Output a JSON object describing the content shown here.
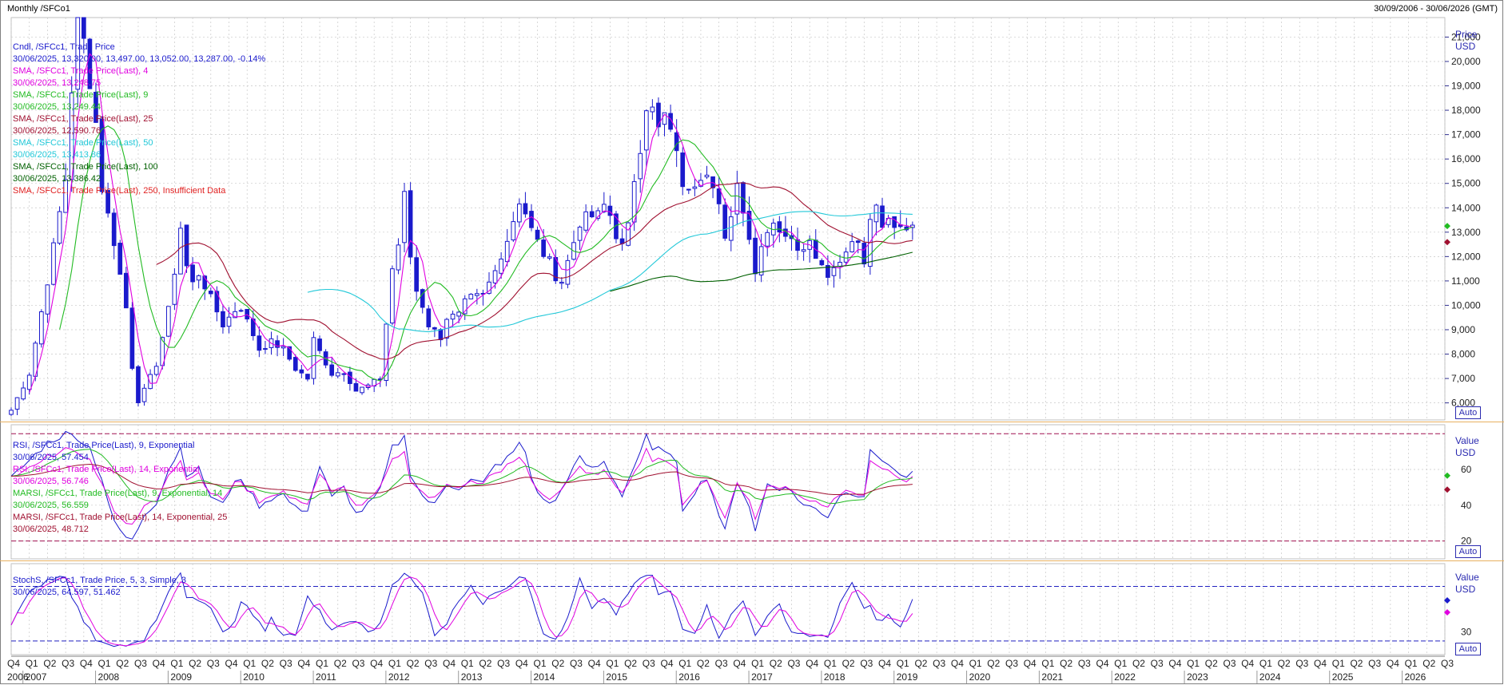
{
  "header": {
    "title": "Monthly /SFCo1",
    "date_range": "30/09/2006 - 30/06/2026 (GMT)"
  },
  "price_panel": {
    "axis_title": [
      "Price",
      "USD"
    ],
    "auto_label": "Auto",
    "legend": [
      {
        "text": "Cndl, /SFCc1, Trade Price",
        "color": "#1a1acc"
      },
      {
        "text": "30/06/2025, 13,320.00, 13,497.00, 13,052.00, 13,287.00, -0.14%",
        "color": "#1a1acc",
        "suffix": "",
        "suffix_color": "#e00000"
      },
      {
        "text": "SMA, /SFCc1, Trade Price(Last), 4",
        "color": "#e000e0"
      },
      {
        "text": "30/06/2025, 13,248.75",
        "color": "#e000e0"
      },
      {
        "text": "SMA, /SFCc1, Trade Price(Last), 9",
        "color": "#22bb22"
      },
      {
        "text": "30/06/2025, 13,249.44",
        "color": "#22bb22"
      },
      {
        "text": "SMA, /SFCc1, Trade Price(Last), 25",
        "color": "#a01030"
      },
      {
        "text": "30/06/2025, 12,590.76",
        "color": "#a01030"
      },
      {
        "text": "SMA, /SFCc1, Trade Price(Last), 50",
        "color": "#22c8d8"
      },
      {
        "text": "30/06/2025, 13,413.86",
        "color": "#22c8d8"
      },
      {
        "text": "SMA, /SFCc1, Trade Price(Last), 100",
        "color": "#006000"
      },
      {
        "text": "30/06/2025, 13,386.42",
        "color": "#006000"
      },
      {
        "text": "SMA, /SFCc1, Trade Price(Last), 250, Insufficient Data",
        "color": "#e02020"
      }
    ]
  },
  "rsi_panel": {
    "axis_title": [
      "Value",
      "USD"
    ],
    "auto_label": "Auto",
    "legend": [
      {
        "text": "RSI, /SFCc1, Trade Price(Last), 9, Exponential",
        "color": "#1a1acc"
      },
      {
        "text": "30/06/2025, 57.454",
        "color": "#1a1acc"
      },
      {
        "text": "RSI, /SFCc1, Trade Price(Last), 14, Exponential",
        "color": "#e000e0"
      },
      {
        "text": "30/06/2025, 56.746",
        "color": "#e000e0"
      },
      {
        "text": "MARSI, /SFCc1, Trade Price(Last), 9, Exponential, 14",
        "color": "#22bb22"
      },
      {
        "text": "30/06/2025, 56.559",
        "color": "#22bb22"
      },
      {
        "text": "MARSI, /SFCc1, Trade Price(Last), 14, Exponential, 25",
        "color": "#a01030"
      },
      {
        "text": "30/06/2025, 48.712",
        "color": "#a01030"
      }
    ]
  },
  "stoch_panel": {
    "axis_title": [
      "Value",
      "USD"
    ],
    "auto_label": "Auto",
    "legend": [
      {
        "text": "StochS, /SFCc1, Trade Price, 5, 3, Simple, 3",
        "color": "#1a1acc"
      },
      {
        "text": "30/06/2025, 64.597, 51.462",
        "color": "#1a1acc"
      }
    ]
  },
  "chart_data": {
    "type": "candlestick",
    "frequency": "monthly",
    "price_axis": {
      "ticks": [
        6000,
        7000,
        8000,
        9000,
        10000,
        11000,
        12000,
        13000,
        14000,
        15000,
        16000,
        17000,
        18000,
        19000,
        20000,
        21000
      ],
      "tick_labels": [
        "6,000",
        "7,000",
        "8,000",
        "9,000",
        "10,000",
        "11,000",
        "12,000",
        "13,000",
        "14,000",
        "15,000",
        "16,000",
        "17,000",
        "18,000",
        "19,000",
        "20,000",
        "21,000"
      ],
      "range": [
        5300,
        21800
      ]
    },
    "rsi_axis": {
      "ticks": [
        20,
        40,
        60
      ],
      "range": [
        10,
        85
      ],
      "bands": [
        20,
        80
      ]
    },
    "stoch_axis": {
      "ticks": [
        30
      ],
      "range": [
        5,
        105
      ],
      "bands": [
        20,
        80
      ]
    },
    "x_axis": {
      "range_quarters": [
        0,
        79
      ],
      "quarter_labels": [
        "Q4",
        "Q1",
        "Q2",
        "Q3"
      ],
      "years": [
        "2006",
        "2007",
        "2008",
        "2009",
        "2010",
        "2011",
        "2012",
        "2013",
        "2014",
        "2015",
        "2016",
        "2017",
        "2018",
        "2019",
        "2020",
        "2021",
        "2022",
        "2023",
        "2024",
        "2025",
        "2026"
      ],
      "last_quarter_label": "Q2"
    },
    "anchors": {
      "close": [
        [
          0,
          5700
        ],
        [
          3,
          7200
        ],
        [
          6,
          11000
        ],
        [
          8,
          13800
        ],
        [
          9,
          15200
        ],
        [
          11,
          22500
        ],
        [
          14,
          17500
        ],
        [
          15,
          14800
        ],
        [
          17,
          12600
        ],
        [
          19,
          9900
        ],
        [
          20,
          7500
        ],
        [
          21,
          6100
        ],
        [
          22,
          6500
        ],
        [
          24,
          7600
        ],
        [
          26,
          9800
        ],
        [
          27,
          11400
        ],
        [
          28,
          13200
        ],
        [
          29,
          11600
        ],
        [
          30,
          10900
        ],
        [
          31,
          11300
        ],
        [
          33,
          10300
        ],
        [
          35,
          9200
        ],
        [
          37,
          9800
        ],
        [
          38,
          9900
        ],
        [
          40,
          8800
        ],
        [
          41,
          8200
        ],
        [
          43,
          8500
        ],
        [
          45,
          8200
        ],
        [
          47,
          7400
        ],
        [
          49,
          7000
        ],
        [
          50,
          8600
        ],
        [
          51,
          8100
        ],
        [
          53,
          7200
        ],
        [
          55,
          7300
        ],
        [
          57,
          6500
        ],
        [
          59,
          6700
        ],
        [
          61,
          7000
        ],
        [
          63,
          11500
        ],
        [
          64,
          12500
        ],
        [
          65,
          14500
        ],
        [
          66,
          12000
        ],
        [
          67,
          10600
        ],
        [
          68,
          10000
        ],
        [
          69,
          9200
        ],
        [
          71,
          8700
        ],
        [
          72,
          9500
        ],
        [
          74,
          9600
        ],
        [
          75,
          10100
        ],
        [
          76,
          10300
        ],
        [
          78,
          10400
        ],
        [
          80,
          11400
        ],
        [
          81,
          12100
        ],
        [
          82,
          12700
        ],
        [
          84,
          14300
        ],
        [
          85,
          13800
        ],
        [
          86,
          13100
        ],
        [
          88,
          12100
        ],
        [
          89,
          11800
        ],
        [
          90,
          11200
        ],
        [
          91,
          11000
        ],
        [
          92,
          11800
        ],
        [
          94,
          13400
        ],
        [
          95,
          13600
        ],
        [
          97,
          13700
        ],
        [
          98,
          14100
        ],
        [
          99,
          13700
        ],
        [
          100,
          12900
        ],
        [
          101,
          12400
        ],
        [
          102,
          13200
        ],
        [
          103,
          15200
        ],
        [
          104,
          16500
        ],
        [
          105,
          18200
        ],
        [
          106,
          18000
        ],
        [
          107,
          17200
        ],
        [
          108,
          17800
        ],
        [
          109,
          17000
        ],
        [
          110,
          16500
        ],
        [
          111,
          14700
        ],
        [
          113,
          15100
        ],
        [
          115,
          15600
        ],
        [
          117,
          14000
        ],
        [
          118,
          12600
        ],
        [
          119,
          13800
        ],
        [
          120,
          15000
        ],
        [
          121,
          14000
        ],
        [
          122,
          12800
        ],
        [
          123,
          11300
        ],
        [
          124,
          12600
        ],
        [
          126,
          13500
        ],
        [
          127,
          13100
        ],
        [
          128,
          12700
        ],
        [
          129,
          12900
        ],
        [
          130,
          12400
        ],
        [
          132,
          12600
        ],
        [
          133,
          12100
        ],
        [
          134,
          11700
        ],
        [
          135,
          11300
        ],
        [
          137,
          11800
        ],
        [
          138,
          12400
        ],
        [
          140,
          12600
        ],
        [
          141,
          11600
        ],
        [
          142,
          13600
        ],
        [
          143,
          13900
        ],
        [
          144,
          13100
        ],
        [
          145,
          13500
        ],
        [
          146,
          13300
        ],
        [
          149,
          13287
        ]
      ],
      "rsi": [
        [
          0,
          55
        ],
        [
          6,
          75
        ],
        [
          9,
          80
        ],
        [
          11,
          78
        ],
        [
          13,
          72
        ],
        [
          15,
          55
        ],
        [
          17,
          30
        ],
        [
          19,
          22
        ],
        [
          20,
          20
        ],
        [
          22,
          35
        ],
        [
          24,
          42
        ],
        [
          26,
          60
        ],
        [
          28,
          72
        ],
        [
          29,
          58
        ],
        [
          31,
          60
        ],
        [
          33,
          45
        ],
        [
          35,
          40
        ],
        [
          37,
          55
        ],
        [
          39,
          50
        ],
        [
          41,
          40
        ],
        [
          43,
          44
        ],
        [
          45,
          46
        ],
        [
          47,
          38
        ],
        [
          49,
          38
        ],
        [
          51,
          62
        ],
        [
          53,
          44
        ],
        [
          55,
          50
        ],
        [
          57,
          35
        ],
        [
          59,
          40
        ],
        [
          61,
          48
        ],
        [
          63,
          72
        ],
        [
          65,
          78
        ],
        [
          66,
          58
        ],
        [
          68,
          45
        ],
        [
          70,
          40
        ],
        [
          72,
          52
        ],
        [
          74,
          50
        ],
        [
          76,
          54
        ],
        [
          78,
          52
        ],
        [
          80,
          62
        ],
        [
          82,
          66
        ],
        [
          84,
          74
        ],
        [
          85,
          70
        ],
        [
          86,
          55
        ],
        [
          88,
          42
        ],
        [
          90,
          42
        ],
        [
          92,
          56
        ],
        [
          94,
          66
        ],
        [
          96,
          60
        ],
        [
          98,
          64
        ],
        [
          100,
          52
        ],
        [
          101,
          46
        ],
        [
          103,
          62
        ],
        [
          105,
          78
        ],
        [
          106,
          70
        ],
        [
          108,
          72
        ],
        [
          110,
          62
        ],
        [
          111,
          38
        ],
        [
          113,
          48
        ],
        [
          115,
          56
        ],
        [
          117,
          35
        ],
        [
          118,
          25
        ],
        [
          120,
          54
        ],
        [
          122,
          40
        ],
        [
          123,
          25
        ],
        [
          125,
          52
        ],
        [
          127,
          50
        ],
        [
          129,
          48
        ],
        [
          131,
          40
        ],
        [
          133,
          38
        ],
        [
          135,
          34
        ],
        [
          137,
          46
        ],
        [
          139,
          47
        ],
        [
          141,
          46
        ],
        [
          142,
          72
        ],
        [
          143,
          66
        ],
        [
          145,
          64
        ],
        [
          147,
          56
        ],
        [
          149,
          57
        ]
      ],
      "stoch": [
        [
          0,
          40
        ],
        [
          3,
          72
        ],
        [
          6,
          88
        ],
        [
          9,
          92
        ],
        [
          10,
          70
        ],
        [
          12,
          42
        ],
        [
          14,
          22
        ],
        [
          16,
          18
        ],
        [
          18,
          15
        ],
        [
          20,
          16
        ],
        [
          22,
          20
        ],
        [
          24,
          45
        ],
        [
          26,
          72
        ],
        [
          28,
          95
        ],
        [
          29,
          70
        ],
        [
          31,
          62
        ],
        [
          33,
          58
        ],
        [
          35,
          30
        ],
        [
          37,
          40
        ],
        [
          38,
          62
        ],
        [
          39,
          58
        ],
        [
          41,
          40
        ],
        [
          42,
          30
        ],
        [
          43,
          45
        ],
        [
          45,
          25
        ],
        [
          47,
          28
        ],
        [
          49,
          68
        ],
        [
          51,
          52
        ],
        [
          53,
          30
        ],
        [
          55,
          40
        ],
        [
          57,
          42
        ],
        [
          59,
          30
        ],
        [
          61,
          38
        ],
        [
          63,
          82
        ],
        [
          65,
          96
        ],
        [
          66,
          88
        ],
        [
          68,
          72
        ],
        [
          70,
          28
        ],
        [
          72,
          40
        ],
        [
          74,
          65
        ],
        [
          76,
          82
        ],
        [
          78,
          60
        ],
        [
          80,
          74
        ],
        [
          82,
          80
        ],
        [
          84,
          92
        ],
        [
          85,
          90
        ],
        [
          86,
          72
        ],
        [
          88,
          26
        ],
        [
          90,
          22
        ],
        [
          92,
          44
        ],
        [
          94,
          88
        ],
        [
          96,
          54
        ],
        [
          98,
          68
        ],
        [
          100,
          50
        ],
        [
          102,
          72
        ],
        [
          104,
          90
        ],
        [
          106,
          92
        ],
        [
          107,
          70
        ],
        [
          109,
          75
        ],
        [
          111,
          35
        ],
        [
          113,
          30
        ],
        [
          115,
          58
        ],
        [
          117,
          25
        ],
        [
          119,
          48
        ],
        [
          121,
          64
        ],
        [
          123,
          28
        ],
        [
          125,
          46
        ],
        [
          127,
          60
        ],
        [
          129,
          30
        ],
        [
          131,
          28
        ],
        [
          133,
          25
        ],
        [
          135,
          24
        ],
        [
          137,
          62
        ],
        [
          139,
          82
        ],
        [
          141,
          56
        ],
        [
          142,
          58
        ],
        [
          143,
          42
        ],
        [
          145,
          48
        ],
        [
          147,
          34
        ],
        [
          149,
          64
        ]
      ]
    },
    "series": [
      {
        "name": "Cndl, /SFCc1, Trade Price",
        "kind": "candles",
        "color": "#1a1acc"
      },
      {
        "name": "SMA 4",
        "period": 4,
        "color": "#e000e0"
      },
      {
        "name": "SMA 9",
        "period": 9,
        "color": "#22bb22"
      },
      {
        "name": "SMA 25",
        "period": 25,
        "color": "#a01030"
      },
      {
        "name": "SMA 50",
        "period": 50,
        "color": "#22c8d8"
      },
      {
        "name": "SMA 100",
        "period": 100,
        "color": "#006000"
      },
      {
        "name": "RSI 9",
        "color": "#1a1acc"
      },
      {
        "name": "RSI 14",
        "color": "#e000e0"
      },
      {
        "name": "MARSI 9/14",
        "color": "#22bb22"
      },
      {
        "name": "MARSI 14/25",
        "color": "#a01030"
      },
      {
        "name": "StochS %K",
        "color": "#1a1acc"
      },
      {
        "name": "StochS %D",
        "color": "#e000e0"
      }
    ],
    "last_values": {
      "close": 13287,
      "sma4": 13248.75,
      "sma9": 13249.44,
      "sma25": 12590.76,
      "sma50": 13413.86,
      "sma100": 13386.42,
      "rsi9": 57.454,
      "rsi14": 56.746,
      "marsi9": 56.559,
      "marsi14": 48.712,
      "stoch_k": 64.597,
      "stoch_d": 51.462
    }
  }
}
